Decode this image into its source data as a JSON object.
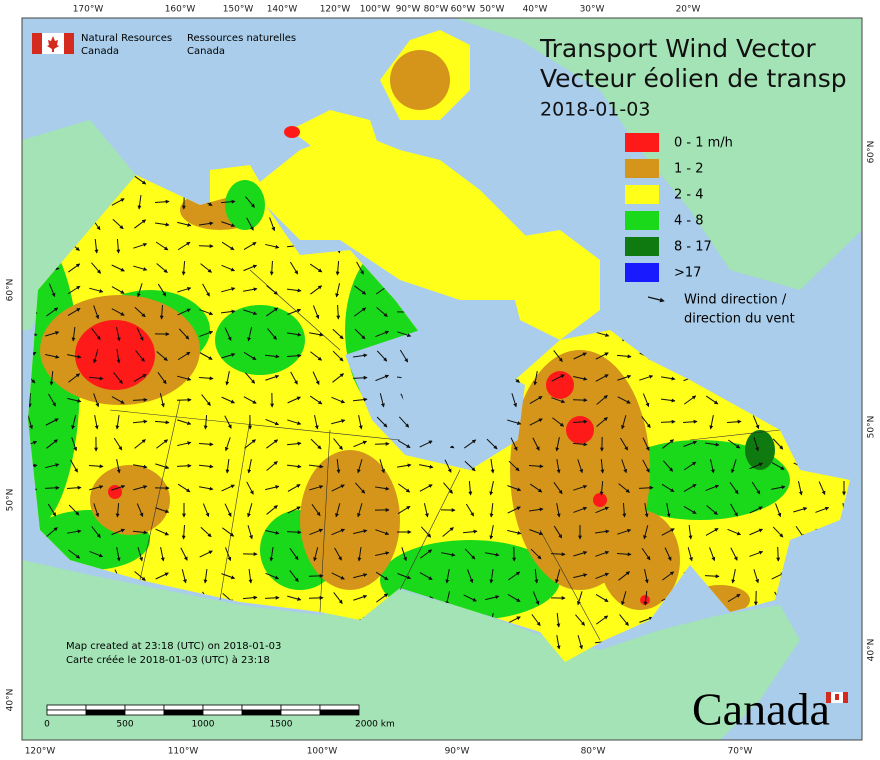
{
  "header": {
    "org_en": [
      "Natural Resources",
      "Canada"
    ],
    "org_fr": [
      "Ressources naturelles",
      "Canada"
    ]
  },
  "title": {
    "en": "Transport Wind Vector",
    "fr": "Vecteur éolien de transp",
    "date": "2018-01-03"
  },
  "legend": {
    "items": [
      {
        "label": "0 - 1 m/h",
        "color": "#ff1a1a"
      },
      {
        "label": "1 - 2",
        "color": "#d4951a"
      },
      {
        "label": "2 - 4",
        "color": "#ffff1a"
      },
      {
        "label": "4 - 8",
        "color": "#1ad81a"
      },
      {
        "label": "8 - 17",
        "color": "#0f7a0f"
      },
      {
        "label": ">17",
        "color": "#1a1aff"
      }
    ],
    "arrow": [
      "Wind direction /",
      "direction du vent"
    ]
  },
  "credits": [
    "Map created at 23:18 (UTC) on 2018-01-03",
    "Carte créée le 2018-01-03 (UTC) à 23:18"
  ],
  "scale_bar": [
    "0",
    "500",
    "1000",
    "1500",
    "2000 km"
  ],
  "graticule": {
    "top": [
      "170°W",
      "160°W",
      "150°W",
      "140°W",
      "120°W",
      "100°W",
      "90°W",
      "80°W",
      "60°W",
      "50°W",
      "40°W",
      "30°W",
      "20°W"
    ],
    "bottom": [
      "120°W",
      "110°W",
      "100°W",
      "90°W",
      "80°W",
      "70°W"
    ],
    "left": [
      "60°N",
      "50°N",
      "40°N"
    ],
    "right": [
      "60°N",
      "50°N",
      "40°N"
    ]
  },
  "wordmark": "Canada"
}
